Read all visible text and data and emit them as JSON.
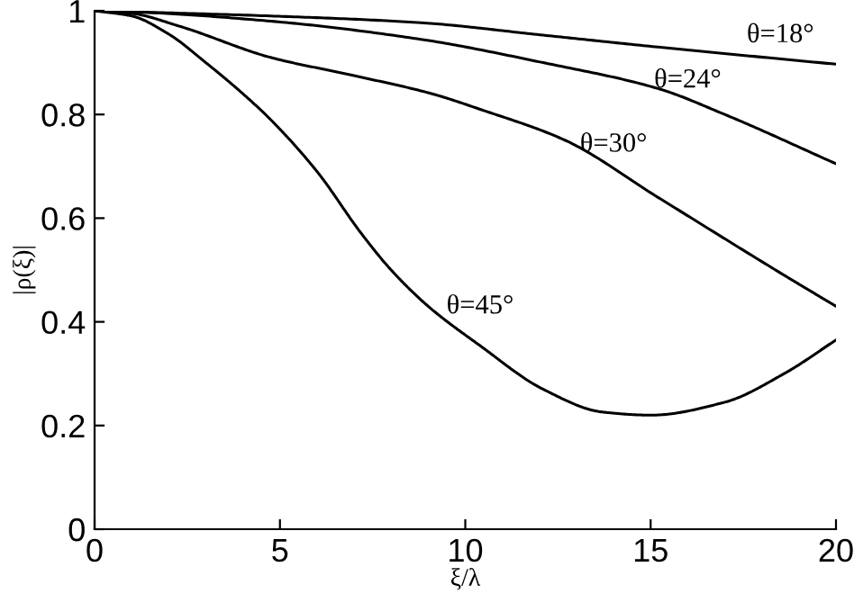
{
  "chart_data": {
    "type": "line",
    "xlabel": "ξ/λ",
    "ylabel": "|ρ(ξ)|",
    "xlim": [
      0,
      20
    ],
    "ylim": [
      0,
      1
    ],
    "xticks": [
      0,
      5,
      10,
      15,
      20
    ],
    "yticks": [
      0,
      0.2,
      0.4,
      0.6,
      0.8,
      1
    ],
    "grid": false,
    "legend": false,
    "line_style": "solid",
    "marker": "none",
    "series": [
      {
        "name": "θ=18°",
        "color": "#000000",
        "x": [
          0,
          4.75,
          8.8,
          12.1,
          15.2,
          20
        ],
        "values": [
          1,
          0.99,
          0.977,
          0.953,
          0.93,
          0.897
        ]
      },
      {
        "name": "θ=24°",
        "color": "#000000",
        "x": [
          0,
          1,
          4.75,
          8.8,
          12.1,
          15.2,
          17,
          20
        ],
        "values": [
          1,
          0.998,
          0.98,
          0.945,
          0.9,
          0.85,
          0.8,
          0.705
        ]
      },
      {
        "name": "θ=30°",
        "color": "#000000",
        "x": [
          0,
          1,
          2.3,
          4.75,
          7,
          9.1,
          10.4,
          12.7,
          15.2,
          18.6,
          20
        ],
        "values": [
          1,
          0.995,
          0.97,
          0.91,
          0.875,
          0.84,
          0.81,
          0.75,
          0.64,
          0.49,
          0.43
        ]
      },
      {
        "name": "θ=45°",
        "color": "#000000",
        "x": [
          0,
          1,
          2,
          3,
          4,
          4.75,
          6,
          7.2,
          8,
          9,
          10.4,
          12.1,
          13.7,
          15,
          17,
          18.6,
          20
        ],
        "values": [
          1,
          0.99,
          0.955,
          0.9,
          0.84,
          0.79,
          0.69,
          0.57,
          0.5,
          0.43,
          0.354,
          0.27,
          0.226,
          0.22,
          0.245,
          0.3,
          0.365
        ]
      }
    ]
  }
}
